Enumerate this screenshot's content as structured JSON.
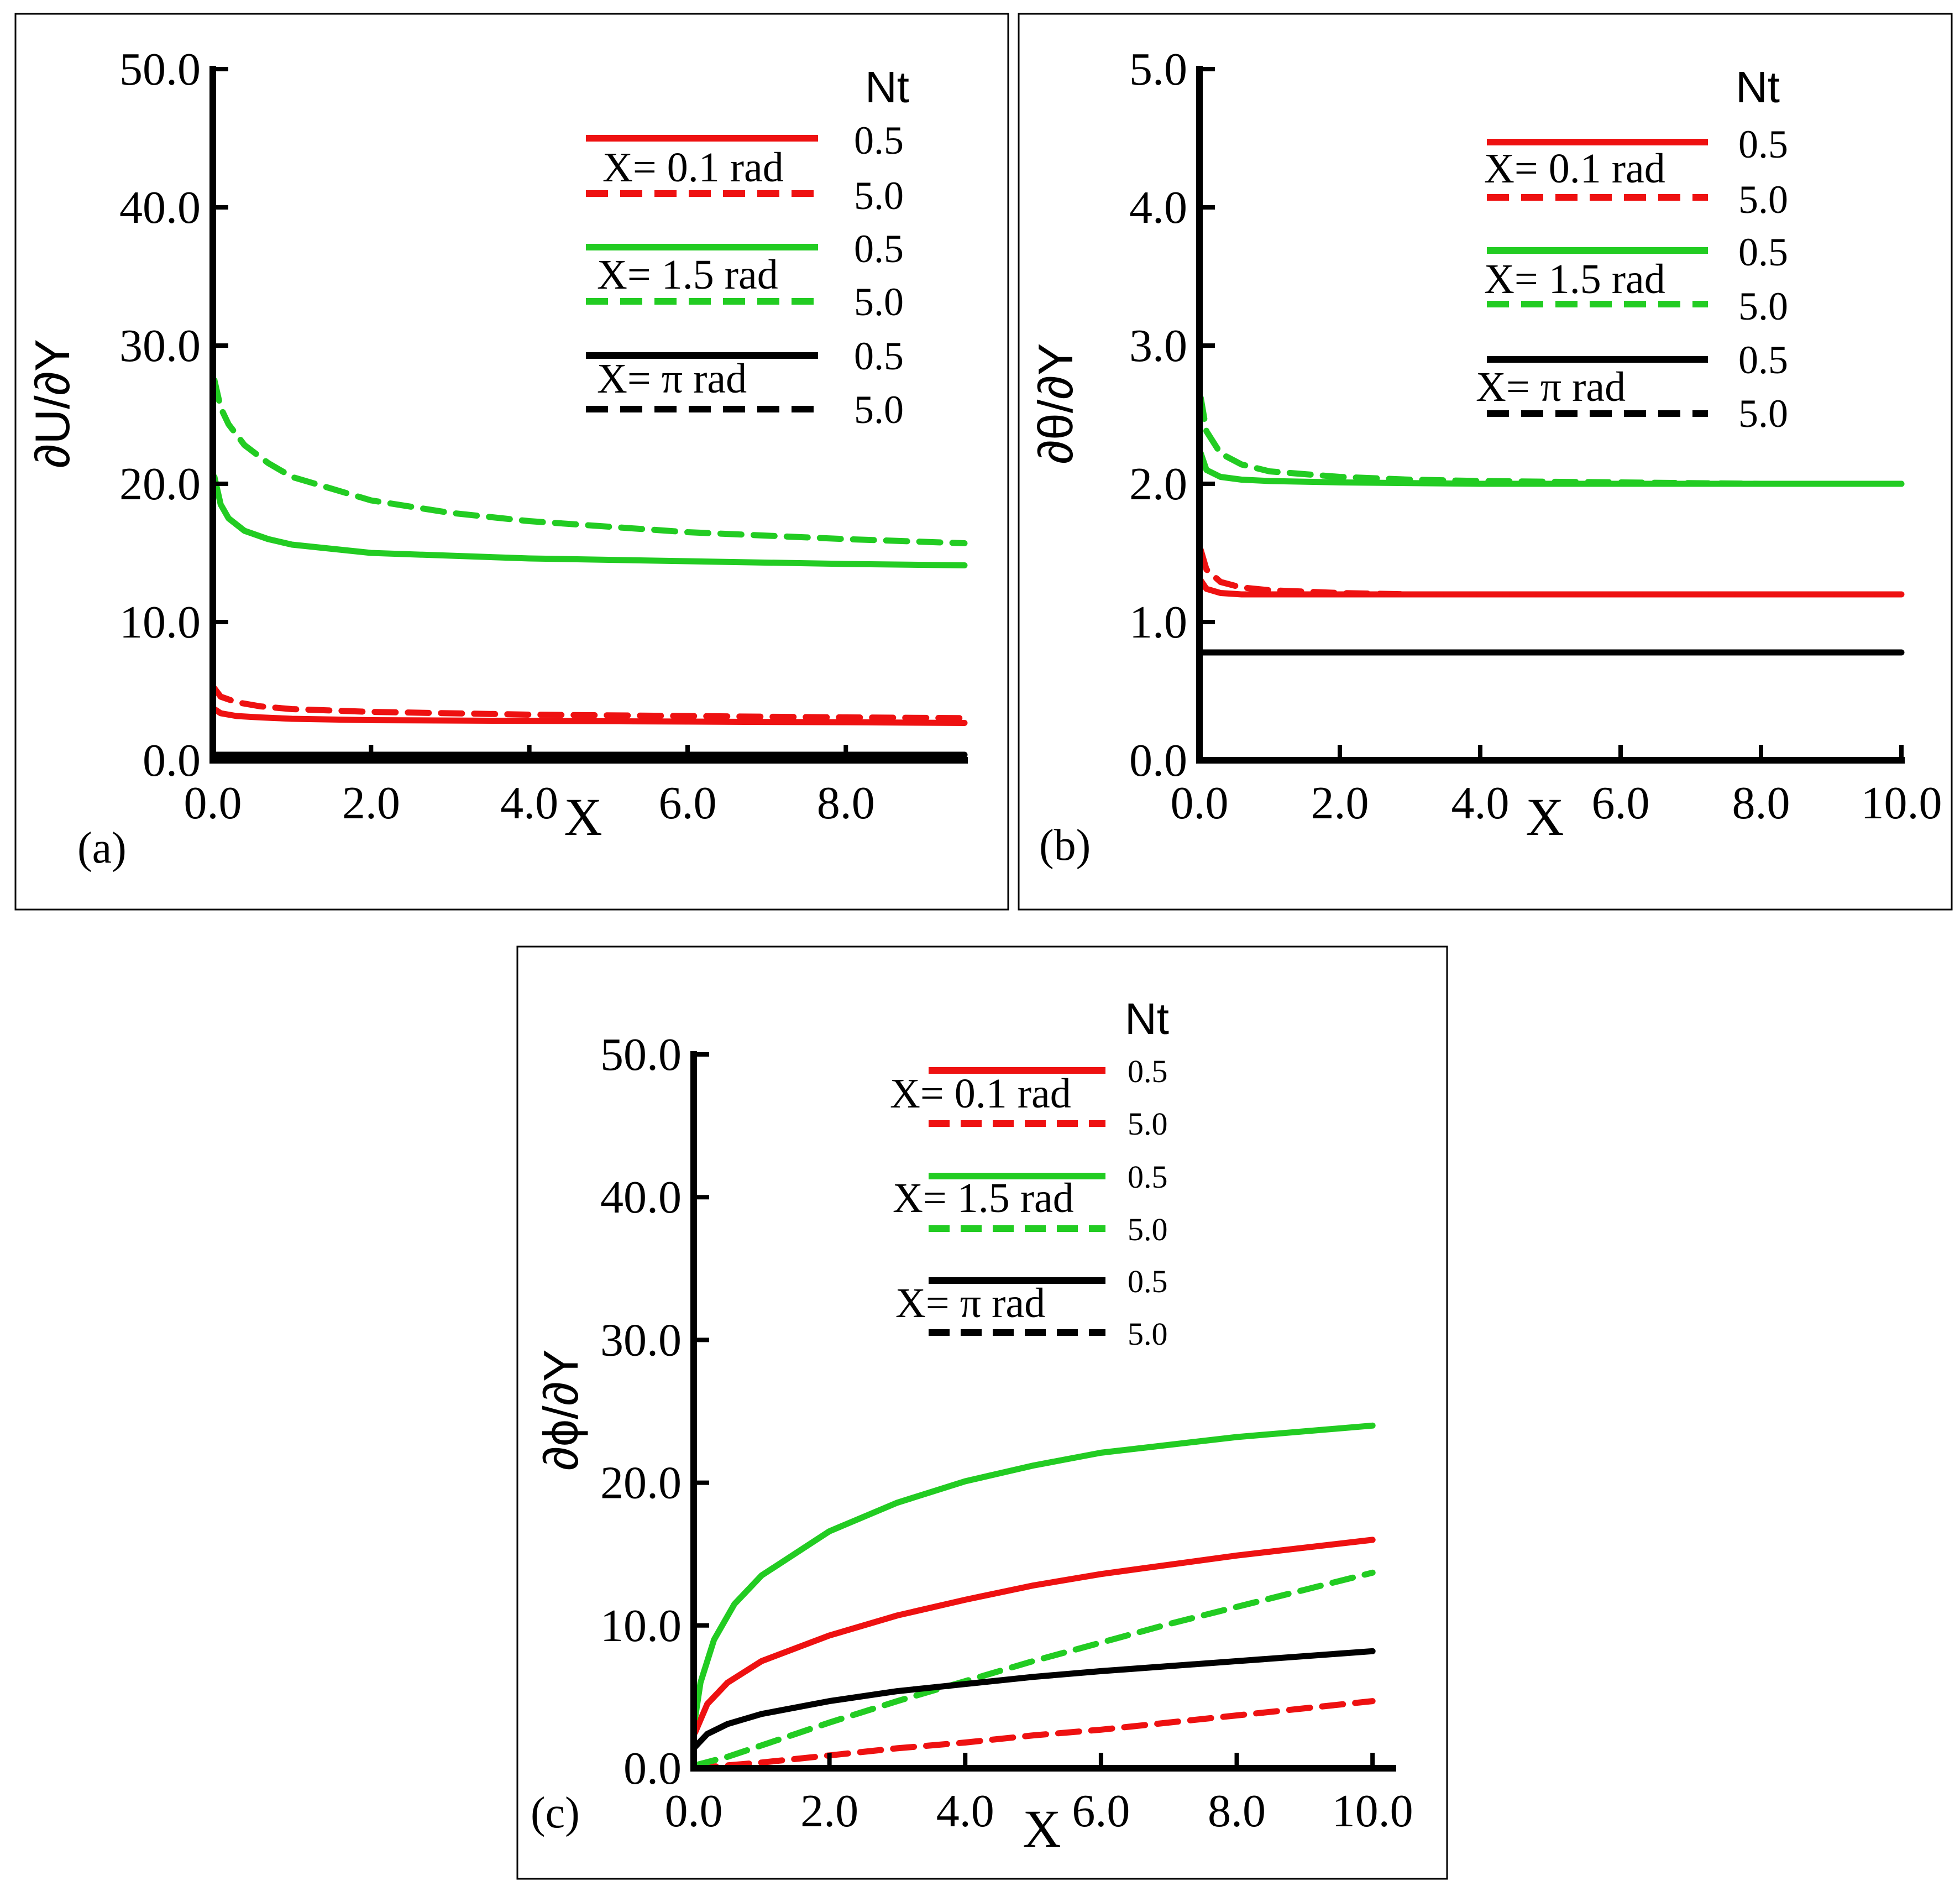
{
  "colors": {
    "red": "#ee1111",
    "green": "#22cc22",
    "black": "#000000"
  },
  "chart_data": [
    {
      "type": "line",
      "panel": "(a)",
      "title": "",
      "xlabel": "X",
      "ylabel": "∂U/∂Y",
      "xlim": [
        0,
        9.5
      ],
      "ylim": [
        0,
        50
      ],
      "xticks": [
        0,
        2,
        4,
        6,
        8
      ],
      "xtick_labels": [
        "0.0",
        "2.0",
        "4.0",
        "6.0",
        "8.0"
      ],
      "yticks": [
        0,
        10,
        20,
        30,
        40,
        50
      ],
      "ytick_labels": [
        "0.0",
        "10.0",
        "20.0",
        "30.0",
        "40.0",
        "50.0"
      ],
      "legend": {
        "header": "Nt",
        "groups": [
          {
            "label": "X= 0.1 rad",
            "entries": [
              "0.5",
              "5.0"
            ]
          },
          {
            "label": "X= 1.5 rad",
            "entries": [
              "0.5",
              "5.0"
            ]
          },
          {
            "label": "X= π rad",
            "entries": [
              "0.5",
              "5.0"
            ]
          }
        ]
      },
      "series": [
        {
          "name": "X=0.1 rad, Nt=0.5",
          "color": "red",
          "style": "solid",
          "x": [
            0.02,
            0.1,
            0.3,
            0.6,
            1.0,
            2.0,
            4.0,
            6.0,
            8.0,
            9.5
          ],
          "y": [
            3.7,
            3.4,
            3.2,
            3.1,
            3.0,
            2.9,
            2.85,
            2.8,
            2.75,
            2.7
          ]
        },
        {
          "name": "X=0.1 rad, Nt=5.0",
          "color": "red",
          "style": "dashed",
          "x": [
            0.02,
            0.1,
            0.3,
            0.6,
            1.0,
            2.0,
            4.0,
            6.0,
            8.0,
            9.5
          ],
          "y": [
            5.2,
            4.6,
            4.2,
            3.9,
            3.7,
            3.5,
            3.3,
            3.2,
            3.1,
            3.05
          ]
        },
        {
          "name": "X=1.5 rad, Nt=0.5",
          "color": "green",
          "style": "solid",
          "x": [
            0.02,
            0.1,
            0.2,
            0.4,
            0.7,
            1.0,
            2.0,
            4.0,
            6.0,
            8.0,
            9.5
          ],
          "y": [
            20.5,
            18.5,
            17.5,
            16.6,
            16.0,
            15.6,
            15.0,
            14.6,
            14.4,
            14.2,
            14.1
          ]
        },
        {
          "name": "X=1.5 rad, Nt=5.0",
          "color": "green",
          "style": "dashed",
          "x": [
            0.02,
            0.1,
            0.2,
            0.4,
            0.7,
            1.0,
            2.0,
            3.0,
            4.0,
            6.0,
            8.0,
            9.5
          ],
          "y": [
            27.5,
            25.5,
            24.3,
            22.8,
            21.5,
            20.5,
            18.8,
            17.9,
            17.3,
            16.5,
            16.0,
            15.7
          ]
        },
        {
          "name": "X=π rad, Nt=0.5",
          "color": "black",
          "style": "solid",
          "x": [
            0,
            9.5
          ],
          "y": [
            0.4,
            0.4
          ]
        }
      ]
    },
    {
      "type": "line",
      "panel": "(b)",
      "title": "",
      "xlabel": "X",
      "ylabel": "∂θ/∂Y",
      "xlim": [
        0,
        10
      ],
      "ylim": [
        0,
        5
      ],
      "xticks": [
        0,
        2,
        4,
        6,
        8,
        10
      ],
      "xtick_labels": [
        "0.0",
        "2.0",
        "4.0",
        "6.0",
        "8.0",
        "10.0"
      ],
      "yticks": [
        0,
        1,
        2,
        3,
        4,
        5
      ],
      "ytick_labels": [
        "0.0",
        "1.0",
        "2.0",
        "3.0",
        "4.0",
        "5.0"
      ],
      "legend": {
        "header": "Nt",
        "groups": [
          {
            "label": "X= 0.1 rad",
            "entries": [
              "0.5",
              "5.0"
            ]
          },
          {
            "label": "X= 1.5 rad",
            "entries": [
              "0.5",
              "5.0"
            ]
          },
          {
            "label": "X= π rad",
            "entries": [
              "0.5",
              "5.0"
            ]
          }
        ]
      },
      "series": [
        {
          "name": "X=0.1 rad, Nt=0.5",
          "color": "red",
          "style": "solid",
          "x": [
            0.02,
            0.1,
            0.3,
            0.6,
            1.0,
            2.0,
            4.0,
            6.0,
            8.0,
            10.0
          ],
          "y": [
            1.3,
            1.24,
            1.21,
            1.2,
            1.2,
            1.2,
            1.2,
            1.2,
            1.2,
            1.2
          ]
        },
        {
          "name": "X=0.1 rad, Nt=5.0",
          "color": "red",
          "style": "dashed",
          "x": [
            0.02,
            0.1,
            0.3,
            0.6,
            1.0,
            2.0,
            3.0,
            4.0,
            6.0,
            8.0,
            10.0
          ],
          "y": [
            1.52,
            1.38,
            1.29,
            1.25,
            1.23,
            1.21,
            1.2,
            1.2,
            1.2,
            1.2,
            1.2
          ]
        },
        {
          "name": "X=1.5 rad, Nt=0.5",
          "color": "green",
          "style": "solid",
          "x": [
            0.02,
            0.1,
            0.3,
            0.6,
            1.0,
            2.0,
            4.0,
            6.0,
            8.0,
            10.0
          ],
          "y": [
            2.22,
            2.1,
            2.05,
            2.03,
            2.02,
            2.01,
            2.0,
            2.0,
            2.0,
            2.0
          ]
        },
        {
          "name": "X=1.5 rad, Nt=5.0",
          "color": "green",
          "style": "dashed",
          "x": [
            0.02,
            0.1,
            0.3,
            0.6,
            1.0,
            2.0,
            3.0,
            4.0,
            6.0,
            8.0,
            10.0
          ],
          "y": [
            2.62,
            2.38,
            2.22,
            2.14,
            2.09,
            2.05,
            2.03,
            2.02,
            2.01,
            2.0,
            2.0
          ]
        },
        {
          "name": "X=π rad, Nt=0.5",
          "color": "black",
          "style": "solid",
          "x": [
            0,
            10
          ],
          "y": [
            0.78,
            0.78
          ]
        }
      ]
    },
    {
      "type": "line",
      "panel": "(c)",
      "title": "",
      "xlabel": "X",
      "ylabel": "∂ϕ/∂Y",
      "xlim": [
        0,
        10.3
      ],
      "ylim": [
        0,
        50
      ],
      "xticks": [
        0,
        2,
        4,
        6,
        8,
        10
      ],
      "xtick_labels": [
        "0.0",
        "2.0",
        "4.0",
        "6.0",
        "8.0",
        "10.0"
      ],
      "yticks": [
        0,
        10,
        20,
        30,
        40,
        50
      ],
      "ytick_labels": [
        "0.0",
        "10.0",
        "20.0",
        "30.0",
        "40.0",
        "50.0"
      ],
      "legend": {
        "header": "Nt",
        "groups": [
          {
            "label": "X= 0.1 rad",
            "entries": [
              "0.5",
              "5.0"
            ]
          },
          {
            "label": "X= 1.5 rad",
            "entries": [
              "0.5",
              "5.0"
            ]
          },
          {
            "label": "X=  π rad",
            "entries": [
              "0.5",
              "5.0"
            ]
          }
        ]
      },
      "series": [
        {
          "name": "X=0.1 rad, Nt=0.5",
          "color": "red",
          "style": "solid",
          "x": [
            0.02,
            0.2,
            0.5,
            1.0,
            2.0,
            3.0,
            4.0,
            5.0,
            6.0,
            8.0,
            10.0
          ],
          "y": [
            2.5,
            4.5,
            6.0,
            7.5,
            9.3,
            10.7,
            11.8,
            12.8,
            13.6,
            14.9,
            16.0
          ]
        },
        {
          "name": "X=0.1 rad, Nt=5.0",
          "color": "red",
          "style": "dashed",
          "x": [
            0.02,
            0.5,
            1.0,
            2.0,
            3.0,
            4.0,
            5.0,
            6.0,
            7.0,
            8.0,
            9.0,
            10.0
          ],
          "y": [
            0.0,
            0.2,
            0.4,
            0.9,
            1.4,
            1.8,
            2.3,
            2.7,
            3.2,
            3.7,
            4.2,
            4.7
          ]
        },
        {
          "name": "X=1.5 rad, Nt=0.5",
          "color": "green",
          "style": "solid",
          "x": [
            0.02,
            0.1,
            0.3,
            0.6,
            1.0,
            2.0,
            3.0,
            4.0,
            5.0,
            6.0,
            8.0,
            10.0
          ],
          "y": [
            3.5,
            6.0,
            9.0,
            11.5,
            13.5,
            16.6,
            18.6,
            20.1,
            21.2,
            22.1,
            23.2,
            24.0
          ]
        },
        {
          "name": "X=1.5 rad, Nt=5.0",
          "color": "green",
          "style": "dashed",
          "x": [
            0.02,
            0.5,
            1.0,
            2.0,
            3.0,
            4.0,
            5.0,
            6.0,
            7.0,
            8.0,
            9.0,
            10.0
          ],
          "y": [
            0.2,
            0.8,
            1.6,
            3.2,
            4.7,
            6.1,
            7.5,
            8.8,
            10.1,
            11.3,
            12.5,
            13.7
          ]
        },
        {
          "name": "X=π rad, Nt=0.5",
          "color": "black",
          "style": "solid",
          "x": [
            0.02,
            0.2,
            0.5,
            1.0,
            2.0,
            3.0,
            4.0,
            5.0,
            6.0,
            8.0,
            10.0
          ],
          "y": [
            1.5,
            2.4,
            3.1,
            3.8,
            4.7,
            5.4,
            5.9,
            6.4,
            6.8,
            7.5,
            8.2
          ]
        }
      ]
    }
  ]
}
